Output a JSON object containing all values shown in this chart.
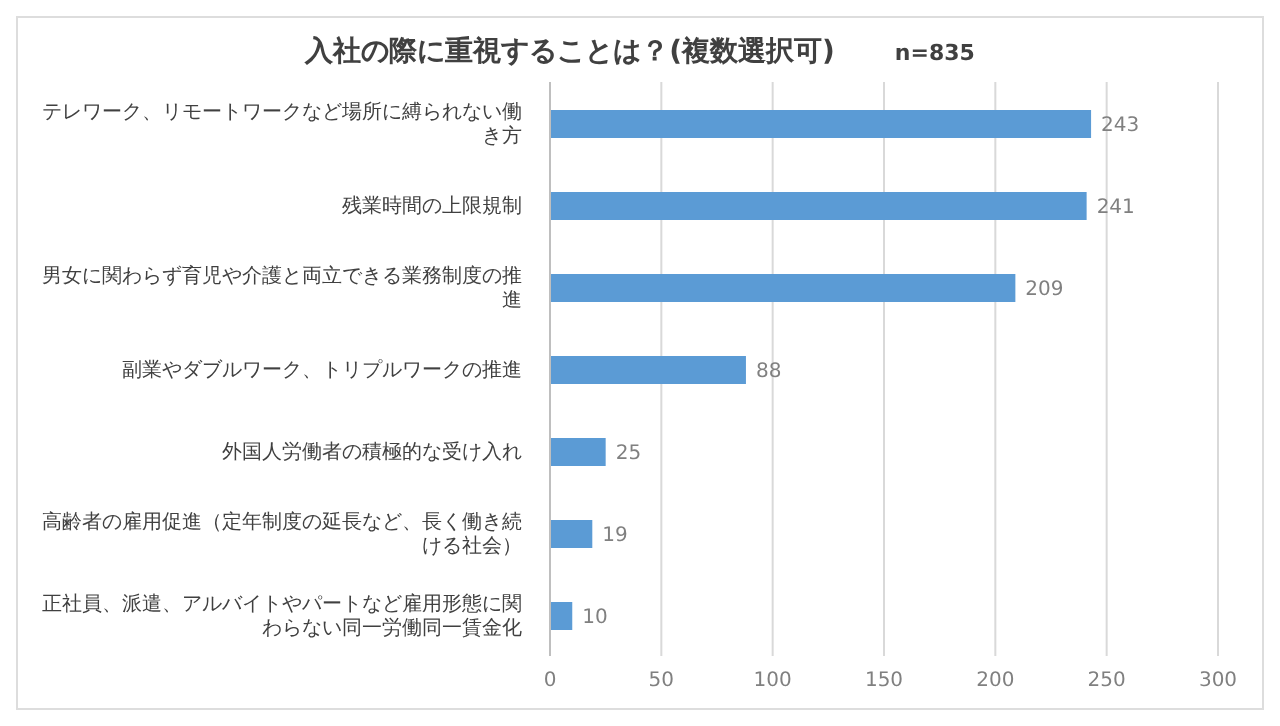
{
  "chart_data": {
    "type": "bar",
    "orientation": "horizontal",
    "title": "入社の際に重視することは？(複数選択可)",
    "subtitle": "n=835",
    "categories": [
      "テレワーク、リモートワークなど場所に縛られない働き方",
      "残業時間の上限規制",
      "男女に関わらず育児や介護と両立できる業務制度の推進",
      "副業やダブルワーク、トリプルワークの推進",
      "外国人労働者の積極的な受け入れ",
      "高齢者の雇用促進（定年制度の延長など、長く働き続ける社会）",
      "正社員、派遣、アルバイトやパートなど雇用形態に関わらない同一労働同一賃金化"
    ],
    "values": [
      243,
      241,
      209,
      88,
      25,
      19,
      10
    ],
    "color": "#5b9bd5",
    "xlim": [
      0,
      300
    ],
    "xticks": [
      0,
      50,
      100,
      150,
      200,
      250,
      300
    ],
    "grid": "x",
    "data_labels": true
  }
}
